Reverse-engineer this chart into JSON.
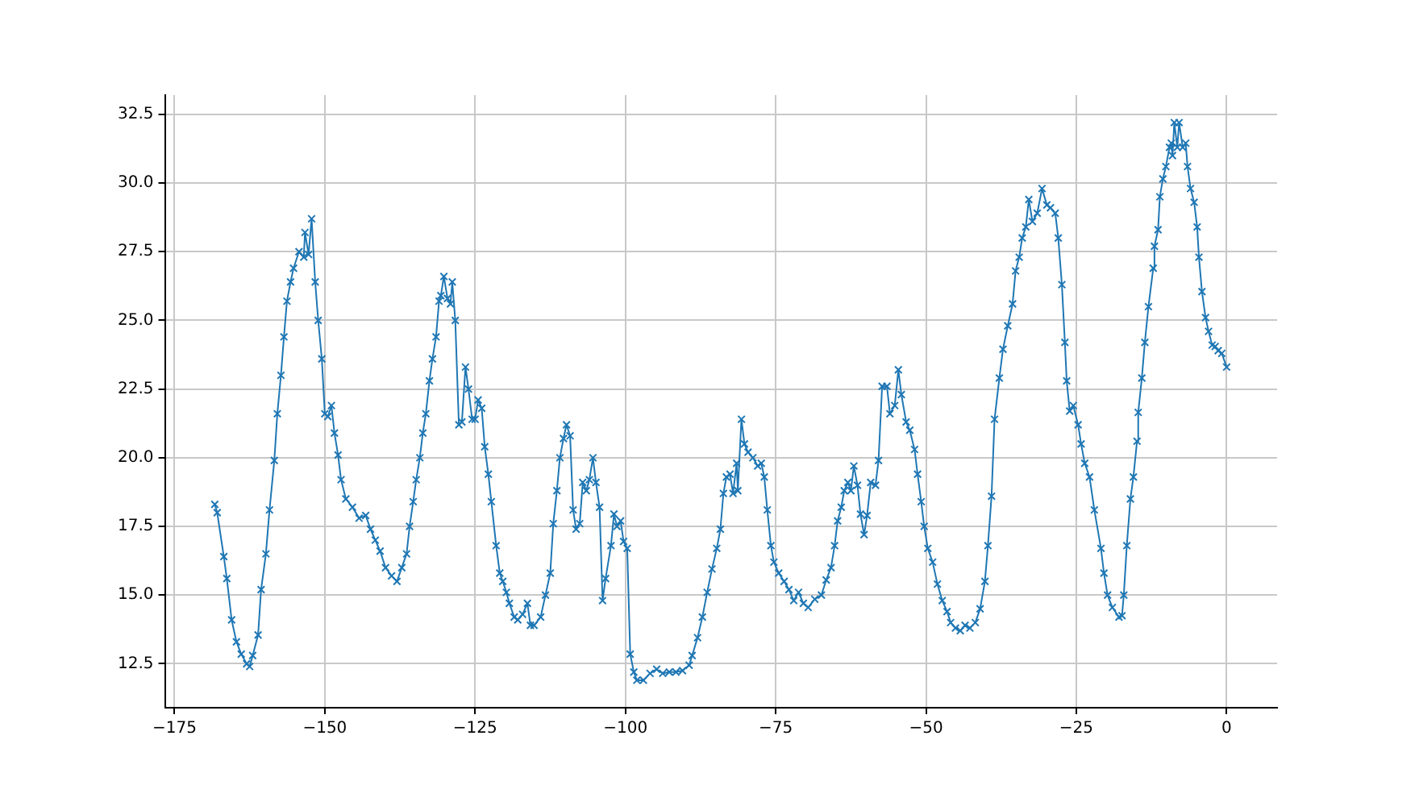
{
  "chart_data": {
    "type": "line",
    "marker": "cross",
    "line_style": "solid",
    "grid": true,
    "xlim": [
      -176.6,
      8.4
    ],
    "ylim": [
      10.9,
      33.2
    ],
    "xticks": [
      {
        "value": -175,
        "label": "−175"
      },
      {
        "value": -150,
        "label": "−150"
      },
      {
        "value": -125,
        "label": "−125"
      },
      {
        "value": -100,
        "label": "−100"
      },
      {
        "value": -75,
        "label": "−75"
      },
      {
        "value": -50,
        "label": "−50"
      },
      {
        "value": -25,
        "label": "−25"
      },
      0
    ],
    "yticks": [
      12.5,
      {
        "value": 15,
        "label": "15.0"
      },
      17.5,
      {
        "value": 20,
        "label": "20.0"
      },
      22.5,
      {
        "value": 25,
        "label": "25.0"
      },
      27.5,
      {
        "value": 30,
        "label": "30.0"
      },
      32.5
    ],
    "series": [
      {
        "color": "#1f77b4",
        "x": [
          -168.3,
          -167.9,
          -166.8,
          -166.3,
          -165.5,
          -164.7,
          -163.9,
          -163.0,
          -162.5,
          -162.0,
          -161.1,
          -160.6,
          -159.8,
          -159.2,
          -158.4,
          -157.9,
          -157.3,
          -156.8,
          -156.3,
          -155.7,
          -155.2,
          -154.3,
          -153.5,
          -153.3,
          -152.7,
          -152.2,
          -151.6,
          -151.1,
          -150.5,
          -150.0,
          -149.5,
          -148.9,
          -148.4,
          -147.8,
          -147.3,
          -146.5,
          -145.4,
          -144.3,
          -143.2,
          -142.4,
          -141.6,
          -140.8,
          -139.9,
          -138.9,
          -138.0,
          -137.2,
          -136.4,
          -135.9,
          -135.3,
          -134.8,
          -134.2,
          -133.7,
          -133.2,
          -132.6,
          -132.1,
          -131.5,
          -131.0,
          -130.7,
          -130.2,
          -129.6,
          -129.1,
          -128.8,
          -128.3,
          -127.7,
          -127.2,
          -126.6,
          -126.1,
          -125.5,
          -125.0,
          -124.5,
          -123.9,
          -123.4,
          -122.8,
          -122.3,
          -121.5,
          -120.9,
          -120.4,
          -119.8,
          -119.3,
          -118.5,
          -117.9,
          -117.1,
          -116.3,
          -115.8,
          -115.2,
          -114.1,
          -113.3,
          -112.5,
          -112.0,
          -111.4,
          -110.9,
          -110.3,
          -109.8,
          -109.2,
          -108.7,
          -108.2,
          -107.6,
          -107.1,
          -106.5,
          -106.0,
          -105.4,
          -104.9,
          -104.3,
          -103.8,
          -103.3,
          -102.4,
          -101.9,
          -101.4,
          -100.8,
          -100.3,
          -99.7,
          -99.2,
          -98.6,
          -98.1,
          -97.0,
          -95.9,
          -94.8,
          -93.8,
          -92.7,
          -91.6,
          -90.5,
          -89.4,
          -88.9,
          -88.0,
          -87.2,
          -86.4,
          -85.6,
          -84.8,
          -84.2,
          -83.7,
          -83.2,
          -82.6,
          -82.1,
          -81.5,
          -81.3,
          -80.7,
          -80.2,
          -79.6,
          -78.8,
          -78.0,
          -77.4,
          -76.9,
          -76.4,
          -75.8,
          -75.3,
          -74.5,
          -73.6,
          -72.8,
          -72.0,
          -71.2,
          -70.4,
          -69.6,
          -68.5,
          -67.4,
          -66.6,
          -65.8,
          -65.2,
          -64.7,
          -64.1,
          -63.6,
          -63.0,
          -62.5,
          -62.0,
          -61.4,
          -60.9,
          -60.3,
          -59.8,
          -59.2,
          -58.4,
          -57.9,
          -57.3,
          -56.5,
          -56.0,
          -55.2,
          -54.6,
          -54.1,
          -53.3,
          -52.7,
          -51.9,
          -51.4,
          -50.8,
          -50.3,
          -49.7,
          -48.9,
          -48.1,
          -47.3,
          -46.5,
          -45.9,
          -45.1,
          -44.3,
          -43.5,
          -42.7,
          -41.8,
          -41.0,
          -40.2,
          -39.7,
          -39.1,
          -38.6,
          -37.8,
          -37.2,
          -36.4,
          -35.6,
          -35.1,
          -34.5,
          -34.0,
          -33.4,
          -32.9,
          -32.3,
          -31.5,
          -30.7,
          -29.9,
          -29.3,
          -28.5,
          -28.0,
          -27.4,
          -26.9,
          -26.6,
          -26.1,
          -25.5,
          -24.7,
          -24.2,
          -23.6,
          -22.8,
          -22.0,
          -20.9,
          -20.4,
          -19.8,
          -19.0,
          -17.9,
          -17.4,
          -17.1,
          -16.6,
          -16.0,
          -15.5,
          -14.9,
          -14.7,
          -14.1,
          -13.6,
          -13.0,
          -12.2,
          -12.0,
          -11.4,
          -11.1,
          -10.6,
          -10.1,
          -9.5,
          -9.2,
          -9.0,
          -8.7,
          -8.2,
          -7.9,
          -7.3,
          -6.8,
          -6.5,
          -6.0,
          -5.4,
          -4.9,
          -4.6,
          -4.1,
          -3.5,
          -3.0,
          -2.4,
          -1.9,
          -1.4,
          -0.8,
          0
        ],
        "values": [
          18.3,
          18.0,
          16.4,
          15.6,
          14.1,
          13.3,
          12.85,
          12.5,
          12.4,
          12.8,
          13.55,
          15.2,
          16.5,
          18.1,
          19.9,
          21.6,
          23.0,
          24.4,
          25.7,
          26.4,
          26.9,
          27.5,
          27.3,
          28.2,
          27.4,
          28.7,
          26.4,
          25.0,
          23.6,
          21.6,
          21.5,
          21.9,
          20.9,
          20.1,
          19.2,
          18.5,
          18.2,
          17.8,
          17.9,
          17.4,
          17.0,
          16.6,
          16.0,
          15.7,
          15.5,
          16.0,
          16.5,
          17.5,
          18.4,
          19.2,
          20.0,
          20.9,
          21.6,
          22.8,
          23.6,
          24.4,
          25.7,
          25.9,
          26.6,
          25.8,
          25.6,
          26.4,
          25.0,
          21.2,
          21.3,
          23.3,
          22.5,
          21.4,
          21.4,
          22.1,
          21.8,
          20.4,
          19.4,
          18.4,
          16.8,
          15.8,
          15.5,
          15.1,
          14.7,
          14.2,
          14.1,
          14.3,
          14.7,
          13.9,
          13.9,
          14.2,
          15.0,
          15.8,
          17.6,
          18.8,
          20.0,
          20.7,
          21.2,
          20.8,
          18.1,
          17.4,
          17.6,
          19.1,
          18.8,
          19.2,
          20.0,
          19.1,
          18.2,
          14.8,
          15.6,
          16.8,
          17.95,
          17.5,
          17.7,
          16.95,
          16.7,
          12.85,
          12.2,
          11.9,
          11.9,
          12.15,
          12.3,
          12.15,
          12.2,
          12.2,
          12.25,
          12.45,
          12.8,
          13.45,
          14.2,
          15.1,
          15.95,
          16.7,
          17.4,
          18.7,
          19.3,
          19.4,
          18.7,
          19.8,
          18.8,
          21.4,
          20.5,
          20.2,
          20.0,
          19.7,
          19.8,
          19.3,
          18.1,
          16.8,
          16.2,
          15.8,
          15.5,
          15.2,
          14.8,
          15.1,
          14.7,
          14.55,
          14.85,
          15.0,
          15.55,
          16.0,
          16.8,
          17.7,
          18.2,
          18.8,
          19.1,
          18.8,
          19.7,
          19.0,
          17.95,
          17.2,
          17.9,
          19.1,
          19.0,
          19.9,
          22.6,
          22.6,
          21.6,
          21.9,
          23.2,
          22.3,
          21.3,
          21.0,
          20.3,
          19.4,
          18.4,
          17.5,
          16.7,
          16.2,
          15.4,
          14.8,
          14.4,
          14.0,
          13.8,
          13.7,
          13.9,
          13.8,
          14.0,
          14.5,
          15.5,
          16.8,
          18.6,
          21.4,
          22.9,
          23.95,
          24.8,
          25.6,
          26.8,
          27.3,
          28.0,
          28.4,
          29.4,
          28.6,
          28.9,
          29.8,
          29.2,
          29.1,
          28.9,
          28.0,
          26.3,
          24.2,
          22.8,
          21.7,
          21.9,
          21.2,
          20.5,
          19.8,
          19.3,
          18.1,
          16.7,
          15.8,
          15.0,
          14.55,
          14.2,
          14.25,
          15.0,
          16.8,
          18.5,
          19.3,
          20.6,
          21.65,
          22.9,
          24.2,
          25.5,
          26.9,
          27.7,
          28.3,
          29.5,
          30.15,
          30.6,
          31.3,
          31.45,
          31.0,
          32.2,
          31.3,
          32.2,
          31.3,
          31.45,
          30.6,
          29.8,
          29.3,
          28.4,
          27.3,
          26.05,
          25.1,
          24.6,
          24.1,
          24.05,
          23.9,
          23.8,
          23.3
        ]
      }
    ]
  }
}
